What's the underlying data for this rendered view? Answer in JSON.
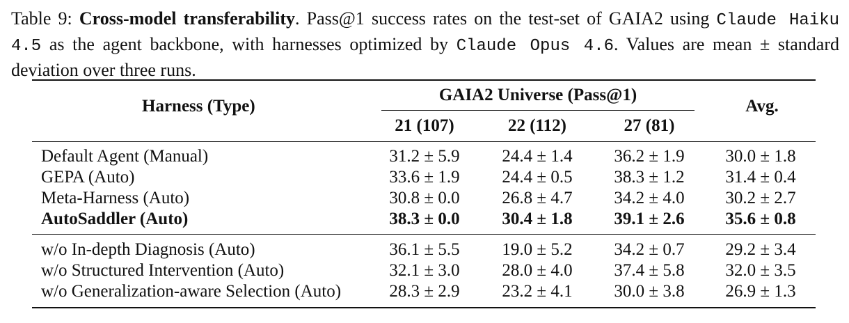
{
  "caption": {
    "label": "Table 9:",
    "title": "Cross-model transferability",
    "text1": ". Pass@1 success rates on the test-set of GAIA2 using ",
    "model1": "Claude Haiku 4.5",
    "text2": " as the agent backbone, with harnesses optimized by ",
    "model2": "Claude Opus 4.6",
    "text3": ". Values are mean ± standard deviation over three runs."
  },
  "header": {
    "harness": "Harness (Type)",
    "group": "GAIA2 Universe (Pass@1)",
    "avg": "Avg.",
    "cols": [
      "21 (107)",
      "22 (112)",
      "27 (81)"
    ]
  },
  "rows_main": [
    {
      "name": "Default Agent (Manual)",
      "vals": [
        "31.2 ± 5.9",
        "24.4 ± 1.4",
        "36.2 ± 1.9"
      ],
      "avg": "30.0 ± 1.8"
    },
    {
      "name": "GEPA (Auto)",
      "vals": [
        "33.6 ± 1.9",
        "24.4 ± 0.5",
        "38.3 ± 1.2"
      ],
      "avg": "31.4 ± 0.4"
    },
    {
      "name": "Meta-Harness (Auto)",
      "vals": [
        "30.8 ± 0.0",
        "26.8 ± 4.7",
        "34.2 ± 4.0"
      ],
      "avg": "30.2 ± 2.7"
    },
    {
      "name": "AutoSaddler (Auto)",
      "vals": [
        "38.3 ± 0.0",
        "30.4 ± 1.8",
        "39.1 ± 2.6"
      ],
      "avg": "35.6 ± 0.8"
    }
  ],
  "rows_ablation": [
    {
      "name": "w/o In-depth Diagnosis (Auto)",
      "vals": [
        "36.1 ± 5.5",
        "19.0 ± 5.2",
        "34.2 ± 0.7"
      ],
      "avg": "29.2 ± 3.4"
    },
    {
      "name": "w/o Structured Intervention (Auto)",
      "vals": [
        "32.1 ± 3.0",
        "28.0 ± 4.0",
        "37.4 ± 5.8"
      ],
      "avg": "32.0 ± 3.5"
    },
    {
      "name": "w/o Generalization-aware Selection (Auto)",
      "vals": [
        "28.3 ± 2.9",
        "23.2 ± 4.1",
        "30.0 ± 3.8"
      ],
      "avg": "26.9 ± 1.3"
    }
  ]
}
